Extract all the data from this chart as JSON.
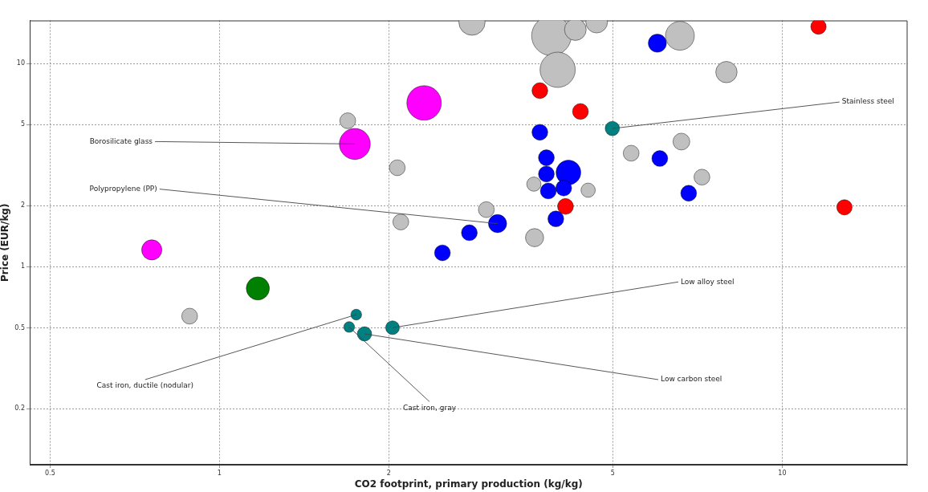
{
  "chart_data": {
    "type": "bubble",
    "xlabel": "CO2 footprint, primary production (kg/kg)",
    "ylabel": "Price (EUR/kg)",
    "log": "xy",
    "grid": true,
    "legend": false,
    "xlim": [
      0.46,
      16.7
    ],
    "xticks": [
      0.5,
      1,
      2,
      5,
      10
    ],
    "ylim": [
      0.106,
      16.3
    ],
    "yticks": [
      0.2,
      0.5,
      1,
      2,
      5,
      10
    ],
    "series": [
      {
        "color": "#c0c0c0",
        "x": [
          2.81,
          3.89,
          3.99,
          4.29,
          4.68,
          6.58,
          7.96,
          1.69,
          2.07,
          2.1,
          2.98,
          3.62,
          4.52,
          3.63,
          5.39,
          6.62,
          7.2,
          0.885
        ],
        "values": [
          16.0,
          13.7,
          9.32,
          14.7,
          16.0,
          13.7,
          9.08,
          5.23,
          3.07,
          1.66,
          1.91,
          2.55,
          2.38,
          1.39,
          3.62,
          4.13,
          2.76,
          0.571
        ],
        "sizes": [
          0.44,
          1.0,
          0.79,
          0.3,
          0.3,
          0.53,
          0.29,
          0.16,
          0.16,
          0.16,
          0.16,
          0.13,
          0.13,
          0.21,
          0.16,
          0.18,
          0.16,
          0.16
        ]
      },
      {
        "color": "#0000ff",
        "x": [
          6.0,
          3.71,
          3.81,
          3.81,
          4.17,
          3.84,
          4.09,
          6.06,
          6.82,
          3.96,
          3.12,
          2.78,
          2.49
        ],
        "values": [
          12.6,
          4.59,
          3.44,
          2.86,
          2.91,
          2.36,
          2.44,
          3.41,
          2.3,
          1.72,
          1.63,
          1.47,
          1.17
        ],
        "sizes": [
          0.21,
          0.16,
          0.16,
          0.16,
          0.39,
          0.16,
          0.16,
          0.16,
          0.16,
          0.16,
          0.21,
          0.16,
          0.16
        ]
      },
      {
        "color": "#ff0000",
        "x": [
          11.6,
          3.71,
          4.38,
          4.12,
          12.9
        ],
        "values": [
          15.2,
          7.36,
          5.81,
          1.98,
          1.96
        ],
        "sizes": [
          0.15,
          0.16,
          0.16,
          0.16,
          0.15
        ]
      },
      {
        "color": "#ff00ff",
        "x": [
          2.31,
          1.74,
          0.758
        ],
        "values": [
          6.4,
          4.02,
          1.21
        ],
        "sizes": [
          0.76,
          0.61,
          0.26
        ]
      },
      {
        "color": "#008080",
        "x": [
          4.99,
          2.03,
          1.81,
          1.7,
          1.75
        ],
        "values": [
          4.79,
          0.501,
          0.467,
          0.505,
          0.581
        ],
        "sizes": [
          0.13,
          0.12,
          0.13,
          0.074,
          0.074
        ]
      },
      {
        "color": "#008000",
        "x": [
          1.17
        ],
        "values": [
          0.782
        ],
        "sizes": [
          0.34
        ]
      }
    ],
    "annotations": [
      {
        "text": "Stainless steel",
        "x": 4.99,
        "y": 4.79
      },
      {
        "text": "Borosilicate glass",
        "x": 1.74,
        "y": 4.02
      },
      {
        "text": "Polypropylene (PP)",
        "x": 3.12,
        "y": 1.63
      },
      {
        "text": "Low alloy steel",
        "x": 2.03,
        "y": 0.501
      },
      {
        "text": "Low carbon steel",
        "x": 1.81,
        "y": 0.467
      },
      {
        "text": "Cast iron, gray",
        "x": 1.7,
        "y": 0.505
      },
      {
        "text": "Cast iron, ductile (nodular)",
        "x": 1.75,
        "y": 0.581
      }
    ]
  }
}
